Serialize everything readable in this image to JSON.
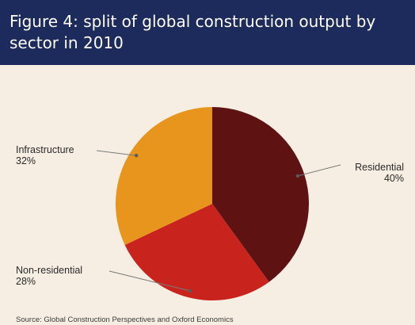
{
  "header": {
    "title": "Figure 4: split of global construction output by sector in 2010"
  },
  "source": "Source: Global Construction Perspectives and Oxford Economics",
  "colors": {
    "header_bg": "#1d2a5c",
    "background": "#f7eee3",
    "residential": "#5e1212",
    "non_residential": "#c8231d",
    "infrastructure": "#e8951e"
  },
  "chart_data": {
    "type": "pie",
    "title": "Figure 4: split of global construction output by sector in 2010",
    "slices": [
      {
        "label": "Residential",
        "value": 40,
        "value_label": "40%",
        "color": "#5e1212"
      },
      {
        "label": "Non-residential",
        "value": 28,
        "value_label": "28%",
        "color": "#c8231d"
      },
      {
        "label": "Infrastructure",
        "value": 32,
        "value_label": "32%",
        "color": "#e8951e"
      }
    ],
    "start_angle": "12 o'clock, clockwise",
    "legend": "none (callout labels)"
  }
}
